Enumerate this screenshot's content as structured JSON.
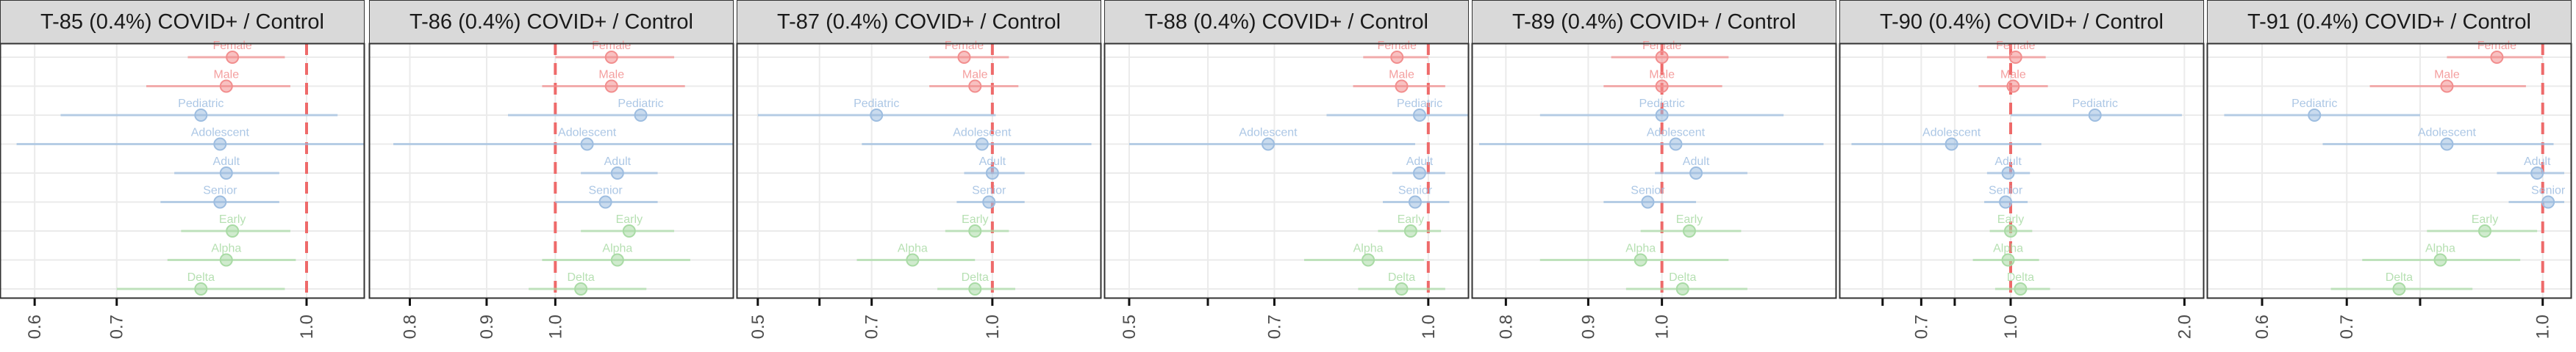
{
  "colors": {
    "Sex": "#f28e8e",
    "Age": "#9dbde0",
    "Variant": "#a9dba5",
    "reference_line": "#ee6a6a",
    "strip_bg": "#d9d9d9",
    "grid": "#ebebeb"
  },
  "chart_data": [
    {
      "type": "forest",
      "title": "T-85 (0.4%) COVID+ / Control",
      "x_scale": "log",
      "xlim": [
        0.57,
        1.1
      ],
      "reference": 1.0,
      "ticks": [
        0.6,
        0.7,
        1.0
      ],
      "tick_labels": [
        "0.6",
        "0.7",
        "1.0"
      ],
      "rows": [
        {
          "label": "Female",
          "group": "Sex",
          "estimate": 0.87,
          "lo": 0.8,
          "hi": 0.96
        },
        {
          "label": "Male",
          "group": "Sex",
          "estimate": 0.86,
          "lo": 0.74,
          "hi": 0.97
        },
        {
          "label": "Pediatric",
          "group": "Age",
          "estimate": 0.82,
          "lo": 0.63,
          "hi": 1.06
        },
        {
          "label": "Adolescent",
          "group": "Age",
          "estimate": 0.85,
          "lo": 0.58,
          "hi": 1.25
        },
        {
          "label": "Adult",
          "group": "Age",
          "estimate": 0.86,
          "lo": 0.78,
          "hi": 0.95
        },
        {
          "label": "Senior",
          "group": "Age",
          "estimate": 0.85,
          "lo": 0.76,
          "hi": 0.95
        },
        {
          "label": "Early",
          "group": "Variant",
          "estimate": 0.87,
          "lo": 0.79,
          "hi": 0.97
        },
        {
          "label": "Alpha",
          "group": "Variant",
          "estimate": 0.86,
          "lo": 0.77,
          "hi": 0.98
        },
        {
          "label": "Delta",
          "group": "Variant",
          "estimate": 0.82,
          "lo": 0.7,
          "hi": 0.96
        }
      ]
    },
    {
      "type": "forest",
      "title": "T-86 (0.4%) COVID+ / Control",
      "x_scale": "log",
      "xlim": [
        0.76,
        1.3
      ],
      "reference": 1.0,
      "ticks": [
        0.8,
        0.9,
        1.0
      ],
      "tick_labels": [
        "0.8",
        "0.9",
        "1.0"
      ],
      "rows": [
        {
          "label": "Female",
          "group": "Sex",
          "estimate": 1.09,
          "lo": 1.0,
          "hi": 1.2
        },
        {
          "label": "Male",
          "group": "Sex",
          "estimate": 1.09,
          "lo": 0.98,
          "hi": 1.22
        },
        {
          "label": "Pediatric",
          "group": "Age",
          "estimate": 1.14,
          "lo": 0.93,
          "hi": 1.41
        },
        {
          "label": "Adolescent",
          "group": "Age",
          "estimate": 1.05,
          "lo": 0.78,
          "hi": 1.4
        },
        {
          "label": "Adult",
          "group": "Age",
          "estimate": 1.1,
          "lo": 1.04,
          "hi": 1.17
        },
        {
          "label": "Senior",
          "group": "Age",
          "estimate": 1.08,
          "lo": 1.0,
          "hi": 1.17
        },
        {
          "label": "Early",
          "group": "Variant",
          "estimate": 1.12,
          "lo": 1.04,
          "hi": 1.2
        },
        {
          "label": "Alpha",
          "group": "Variant",
          "estimate": 1.1,
          "lo": 0.98,
          "hi": 1.23
        },
        {
          "label": "Delta",
          "group": "Variant",
          "estimate": 1.04,
          "lo": 0.96,
          "hi": 1.15
        }
      ]
    },
    {
      "type": "forest",
      "title": "T-87 (0.4%) COVID+ / Control",
      "x_scale": "log",
      "xlim": [
        0.48,
        1.35
      ],
      "reference": 1.0,
      "ticks": [
        0.5,
        0.6,
        0.7,
        1.0
      ],
      "tick_labels": [
        "0.5",
        "",
        "0.7",
        "1.0"
      ],
      "rows": [
        {
          "label": "Female",
          "group": "Sex",
          "estimate": 0.92,
          "lo": 0.83,
          "hi": 1.05
        },
        {
          "label": "Male",
          "group": "Sex",
          "estimate": 0.95,
          "lo": 0.83,
          "hi": 1.08
        },
        {
          "label": "Pediatric",
          "group": "Age",
          "estimate": 0.71,
          "lo": 0.5,
          "hi": 1.01
        },
        {
          "label": "Adolescent",
          "group": "Age",
          "estimate": 0.97,
          "lo": 0.68,
          "hi": 1.34
        },
        {
          "label": "Adult",
          "group": "Age",
          "estimate": 1.0,
          "lo": 0.92,
          "hi": 1.1
        },
        {
          "label": "Senior",
          "group": "Age",
          "estimate": 0.99,
          "lo": 0.9,
          "hi": 1.1
        },
        {
          "label": "Early",
          "group": "Variant",
          "estimate": 0.95,
          "lo": 0.87,
          "hi": 1.05
        },
        {
          "label": "Alpha",
          "group": "Variant",
          "estimate": 0.79,
          "lo": 0.67,
          "hi": 0.95
        },
        {
          "label": "Delta",
          "group": "Variant",
          "estimate": 0.95,
          "lo": 0.85,
          "hi": 1.07
        }
      ]
    },
    {
      "type": "forest",
      "title": "T-88 (0.4%) COVID+ / Control",
      "x_scale": "log",
      "xlim": [
        0.48,
        1.08
      ],
      "reference": 1.0,
      "ticks": [
        0.5,
        0.6,
        0.7,
        1.0
      ],
      "tick_labels": [
        "0.5",
        "",
        "0.7",
        "1.0"
      ],
      "rows": [
        {
          "label": "Female",
          "group": "Sex",
          "estimate": 0.93,
          "lo": 0.86,
          "hi": 1.0
        },
        {
          "label": "Male",
          "group": "Sex",
          "estimate": 0.94,
          "lo": 0.84,
          "hi": 1.04
        },
        {
          "label": "Pediatric",
          "group": "Age",
          "estimate": 0.98,
          "lo": 0.79,
          "hi": 1.1
        },
        {
          "label": "Adolescent",
          "group": "Age",
          "estimate": 0.69,
          "lo": 0.5,
          "hi": 0.97
        },
        {
          "label": "Adult",
          "group": "Age",
          "estimate": 0.98,
          "lo": 0.92,
          "hi": 1.04
        },
        {
          "label": "Senior",
          "group": "Age",
          "estimate": 0.97,
          "lo": 0.9,
          "hi": 1.05
        },
        {
          "label": "Early",
          "group": "Variant",
          "estimate": 0.96,
          "lo": 0.89,
          "hi": 1.03
        },
        {
          "label": "Alpha",
          "group": "Variant",
          "estimate": 0.87,
          "lo": 0.75,
          "hi": 0.99
        },
        {
          "label": "Delta",
          "group": "Variant",
          "estimate": 0.94,
          "lo": 0.85,
          "hi": 1.04
        }
      ]
    },
    {
      "type": "forest",
      "title": "T-89 (0.4%) COVID+ / Control",
      "x_scale": "log",
      "xlim": [
        0.77,
        1.27
      ],
      "reference": 1.0,
      "ticks": [
        0.8,
        0.9,
        1.0
      ],
      "tick_labels": [
        "0.8",
        "0.9",
        "1.0"
      ],
      "rows": [
        {
          "label": "Female",
          "group": "Sex",
          "estimate": 1.0,
          "lo": 0.93,
          "hi": 1.1
        },
        {
          "label": "Male",
          "group": "Sex",
          "estimate": 1.0,
          "lo": 0.92,
          "hi": 1.09
        },
        {
          "label": "Pediatric",
          "group": "Age",
          "estimate": 1.0,
          "lo": 0.84,
          "hi": 1.19
        },
        {
          "label": "Adolescent",
          "group": "Age",
          "estimate": 1.02,
          "lo": 0.77,
          "hi": 1.26
        },
        {
          "label": "Adult",
          "group": "Age",
          "estimate": 1.05,
          "lo": 0.99,
          "hi": 1.13
        },
        {
          "label": "Senior",
          "group": "Age",
          "estimate": 0.98,
          "lo": 0.92,
          "hi": 1.05
        },
        {
          "label": "Early",
          "group": "Variant",
          "estimate": 1.04,
          "lo": 0.97,
          "hi": 1.12
        },
        {
          "label": "Alpha",
          "group": "Variant",
          "estimate": 0.97,
          "lo": 0.84,
          "hi": 1.1
        },
        {
          "label": "Delta",
          "group": "Variant",
          "estimate": 1.03,
          "lo": 0.95,
          "hi": 1.13
        }
      ]
    },
    {
      "type": "forest",
      "title": "T-90 (0.4%) COVID+ / Control",
      "x_scale": "log",
      "xlim": [
        0.52,
        2.1
      ],
      "reference": 1.0,
      "ticks": [
        0.6,
        0.7,
        0.8,
        1.0,
        2.0
      ],
      "tick_labels": [
        "",
        "0.7",
        "",
        "1.0",
        "2.0"
      ],
      "rows": [
        {
          "label": "Female",
          "group": "Sex",
          "estimate": 1.02,
          "lo": 0.91,
          "hi": 1.15
        },
        {
          "label": "Male",
          "group": "Sex",
          "estimate": 1.01,
          "lo": 0.88,
          "hi": 1.16
        },
        {
          "label": "Pediatric",
          "group": "Age",
          "estimate": 1.4,
          "lo": 1.0,
          "hi": 1.98
        },
        {
          "label": "Adolescent",
          "group": "Age",
          "estimate": 0.79,
          "lo": 0.53,
          "hi": 1.13
        },
        {
          "label": "Adult",
          "group": "Age",
          "estimate": 0.99,
          "lo": 0.91,
          "hi": 1.08
        },
        {
          "label": "Senior",
          "group": "Age",
          "estimate": 0.98,
          "lo": 0.9,
          "hi": 1.07
        },
        {
          "label": "Early",
          "group": "Variant",
          "estimate": 1.0,
          "lo": 0.92,
          "hi": 1.09
        },
        {
          "label": "Alpha",
          "group": "Variant",
          "estimate": 0.99,
          "lo": 0.86,
          "hi": 1.12
        },
        {
          "label": "Delta",
          "group": "Variant",
          "estimate": 1.04,
          "lo": 0.94,
          "hi": 1.17
        }
      ]
    },
    {
      "type": "forest",
      "title": "T-91 (0.4%) COVID+ / Control",
      "x_scale": "log",
      "xlim": [
        0.55,
        1.04
      ],
      "reference": 1.0,
      "ticks": [
        0.6,
        0.7,
        0.8,
        1.0
      ],
      "tick_labels": [
        "0.6",
        "0.7",
        "",
        "1.0"
      ],
      "rows": [
        {
          "label": "Female",
          "group": "Sex",
          "estimate": 0.92,
          "lo": 0.84,
          "hi": 1.0
        },
        {
          "label": "Male",
          "group": "Sex",
          "estimate": 0.84,
          "lo": 0.73,
          "hi": 0.97
        },
        {
          "label": "Pediatric",
          "group": "Age",
          "estimate": 0.66,
          "lo": 0.56,
          "hi": 0.8
        },
        {
          "label": "Adolescent",
          "group": "Age",
          "estimate": 0.84,
          "lo": 0.67,
          "hi": 1.02
        },
        {
          "label": "Adult",
          "group": "Age",
          "estimate": 0.99,
          "lo": 0.92,
          "hi": 1.04
        },
        {
          "label": "Senior",
          "group": "Age",
          "estimate": 1.01,
          "lo": 0.94,
          "hi": 1.04
        },
        {
          "label": "Early",
          "group": "Variant",
          "estimate": 0.9,
          "lo": 0.81,
          "hi": 0.99
        },
        {
          "label": "Alpha",
          "group": "Variant",
          "estimate": 0.83,
          "lo": 0.72,
          "hi": 0.96
        },
        {
          "label": "Delta",
          "group": "Variant",
          "estimate": 0.77,
          "lo": 0.68,
          "hi": 0.88
        }
      ]
    }
  ]
}
